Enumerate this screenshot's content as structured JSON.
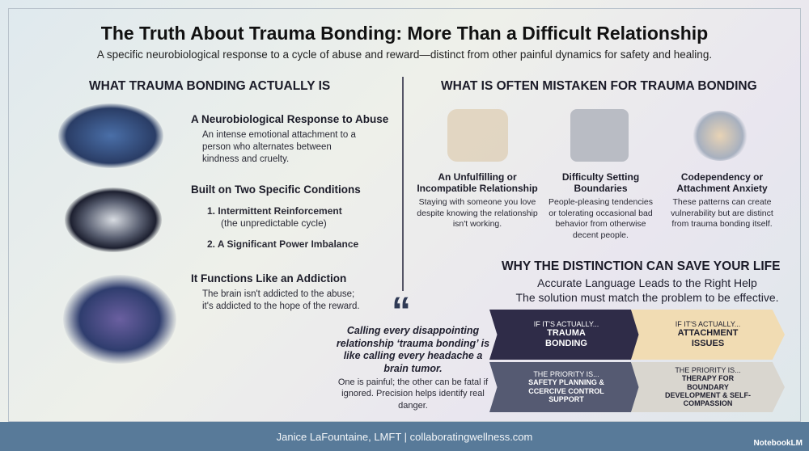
{
  "title": "The Truth About Trauma Bonding: More Than a Difficult Relationship",
  "subtitle": "A specific neurobiological response to a cycle of abuse and reward—distinct from other painful dynamics for safety and healing.",
  "left": {
    "heading": "What Trauma Bonding Actually Is",
    "blocks": [
      {
        "title": "A Neurobiological Response to Abuse",
        "text": "An intense emotional attachment to a person who alternates between kindness and cruelty.",
        "icon": "brain-lightning-icon"
      },
      {
        "title": "Built on Two Specific Conditions",
        "items": [
          "1.  Intermittent Reinforcement",
          "(the unpredictable cycle)",
          "2. A Significant Power Imbalance"
        ],
        "icon": "twisted-loop-icon"
      },
      {
        "title": "It Functions Like an Addiction",
        "text": "The brain isn't addicted to the abuse; it's addicted to the hope of the reward.",
        "icon": "brain-chain-anchor-icon"
      }
    ]
  },
  "right": {
    "heading": "What Is Often Mistaken for Trauma Bonding",
    "cards": [
      {
        "title": "An Unfulfilling or Incompatible Relationship",
        "text": "Staying with someone you love despite knowing the relationship isn't working.",
        "icon": "couple-icon"
      },
      {
        "title": "Difficulty Setting Boundaries",
        "text": "People-pleasing tendencies or tolerating occasional bad behavior from otherwise decent people.",
        "icon": "gate-icon"
      },
      {
        "title": "Codependency or Attachment Anxiety",
        "text": "These patterns can create vulnerability but are distinct from trauma bonding itself.",
        "icon": "interlocked-figures-icon"
      }
    ]
  },
  "distinction": {
    "heading": "Why the Distinction Can Save Your Life",
    "line1": "Accurate Language Leads to the Right Help",
    "line2": "The solution must match the problem to be effective.",
    "chevrons": [
      {
        "small": "IF IT'S ACTUALLY...",
        "big": "TRAUMA BONDING",
        "color": "#2f2c48"
      },
      {
        "small": "IF IT'S ACTUALLY...",
        "big": "ATTACHMENT ISSUES",
        "color": "#f1dcb3"
      },
      {
        "small": "THE PRIORITY IS...",
        "big": "SAFETY PLANNING & CCERCIVE CONTROL SUPPORT",
        "color": "#555a72"
      },
      {
        "small": "THE PRIORITY IS...",
        "big": "THERAPY FOR BOUNDARY DEVELOPMENT & SELF-COMPASSION",
        "color": "#d9d6cf"
      }
    ]
  },
  "quote": {
    "mark": "“",
    "text": "Calling every disappointing relationship ‘trauma bonding’ is like calling every headache a brain tumor.",
    "sub": "One is painful; the other can be fatal if ignored. Precision helps identify real danger."
  },
  "footer": {
    "text": "Janice LaFountaine, LMFT | collaboratingwellness.com",
    "brand": "NotebookLM"
  }
}
